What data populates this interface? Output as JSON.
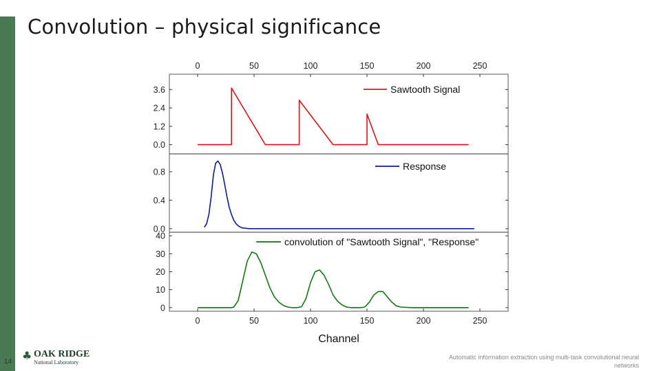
{
  "slide": {
    "title": "Convolution – physical significance",
    "page_number": "14",
    "footer": "Automatic information extraction using multi-task convolutional neural networks",
    "logo": {
      "name": "OAK RIDGE",
      "subtitle": "National Laboratory",
      "icon": "tree-icon"
    },
    "accent_color": "#4a7a55"
  },
  "chart_data": [
    {
      "type": "line",
      "series": [
        {
          "name": "Sawtooth Signal",
          "color": "#dd1111",
          "x": [
            0,
            30,
            30,
            60,
            90,
            90,
            120,
            150,
            150,
            160,
            240
          ],
          "y": [
            0,
            0,
            3.7,
            0,
            0,
            2.9,
            0,
            0,
            2.0,
            0,
            0
          ]
        }
      ],
      "yticks": [
        "3.6",
        "2.4",
        "1.2",
        "0.0"
      ],
      "ylim": [
        -0.6,
        4.6
      ],
      "xlim": [
        -25,
        275
      ],
      "top_xticks": [
        "0",
        "50",
        "100",
        "150",
        "200",
        "250"
      ],
      "legend": "top-right"
    },
    {
      "type": "line",
      "series": [
        {
          "name": "Response",
          "color": "#0a1a99",
          "x": [
            6,
            8,
            10,
            12,
            14,
            16,
            18,
            20,
            22,
            24,
            26,
            28,
            30,
            32,
            34,
            36,
            38,
            40,
            43,
            46,
            50,
            60,
            100,
            150,
            200,
            245
          ],
          "y": [
            0.02,
            0.07,
            0.2,
            0.45,
            0.76,
            0.92,
            0.95,
            0.9,
            0.78,
            0.62,
            0.45,
            0.3,
            0.2,
            0.12,
            0.07,
            0.04,
            0.02,
            0.01,
            0.005,
            0.0,
            0.0,
            0.0,
            0.0,
            0.0,
            0.0,
            0.0
          ]
        }
      ],
      "yticks": [
        "0.8",
        "0.4",
        "0.0"
      ],
      "ylim": [
        -0.05,
        1.05
      ],
      "xlim": [
        -25,
        275
      ],
      "legend": "top-right"
    },
    {
      "type": "line",
      "series": [
        {
          "name": "convolution of \"Sawtooth Signal\", \"Response\"",
          "color": "#0d7a0d",
          "x": [
            0,
            30,
            32,
            36,
            40,
            44,
            48,
            52,
            56,
            60,
            64,
            68,
            72,
            76,
            80,
            84,
            88,
            92,
            96,
            100,
            104,
            108,
            112,
            116,
            120,
            124,
            128,
            132,
            136,
            140,
            144,
            148,
            152,
            156,
            160,
            164,
            168,
            172,
            176,
            180,
            190,
            200,
            240
          ],
          "y": [
            0,
            0,
            0.3,
            4,
            15,
            26,
            31,
            30,
            25,
            18,
            11,
            6,
            3,
            1.2,
            0.3,
            0,
            0,
            0.5,
            5,
            14,
            20,
            21,
            18,
            13,
            7,
            3.5,
            1.5,
            0.3,
            0,
            0,
            0,
            0.3,
            3,
            7,
            9,
            9,
            6,
            3,
            1,
            0.3,
            0,
            0,
            0
          ]
        }
      ],
      "yticks": [
        "40",
        "30",
        "20",
        "10",
        "0"
      ],
      "ylim": [
        -2,
        42
      ],
      "xlim": [
        -25,
        275
      ],
      "bottom_xticks": [
        "0",
        "50",
        "100",
        "150",
        "200",
        "250"
      ],
      "xlabel": "Channel",
      "legend": "top-right"
    }
  ]
}
